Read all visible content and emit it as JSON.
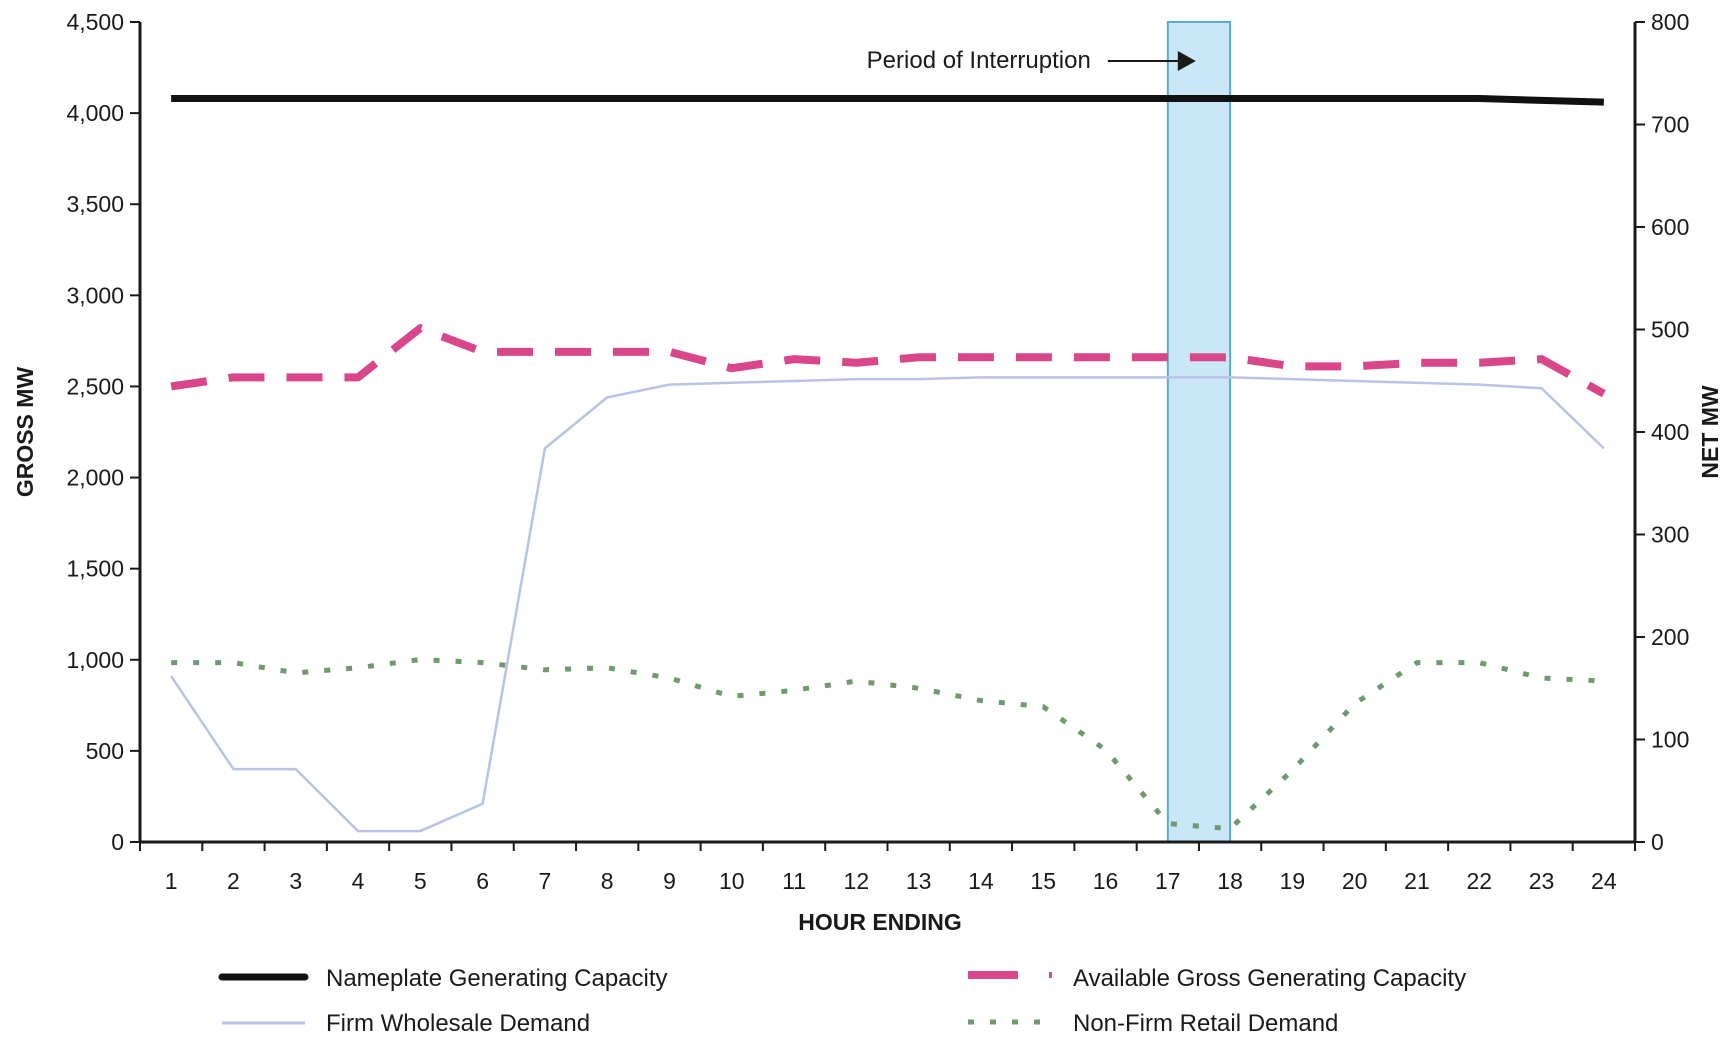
{
  "chart_data": {
    "type": "line",
    "title": "",
    "xlabel": "HOUR ENDING",
    "ylabel": "GROSS MW",
    "y2label": "NET MW",
    "x": [
      1,
      2,
      3,
      4,
      5,
      6,
      7,
      8,
      9,
      10,
      11,
      12,
      13,
      14,
      15,
      16,
      17,
      18,
      19,
      20,
      21,
      22,
      23,
      24
    ],
    "xlim": [
      0.5,
      24.5
    ],
    "ylim": [
      0,
      4500
    ],
    "y2lim": [
      0,
      800
    ],
    "y_ticks": [
      0,
      500,
      1000,
      1500,
      2000,
      2500,
      3000,
      3500,
      4000,
      4500
    ],
    "y_tick_labels": [
      "0",
      "500",
      "1,000",
      "1,500",
      "2,000",
      "2,500",
      "3,000",
      "3,500",
      "4,000",
      "4,500"
    ],
    "y2_ticks": [
      0,
      100,
      200,
      300,
      400,
      500,
      600,
      700,
      800
    ],
    "y2_tick_labels": [
      "0",
      "100",
      "200",
      "300",
      "400",
      "500",
      "600",
      "700",
      "800"
    ],
    "grid": false,
    "legend_position": "bottom",
    "series": [
      {
        "name": "Nameplate Generating Capacity",
        "axis": "left",
        "color": "#111111",
        "style": "solid-thick",
        "values": [
          4080,
          4080,
          4080,
          4080,
          4080,
          4080,
          4080,
          4080,
          4080,
          4080,
          4080,
          4080,
          4080,
          4080,
          4080,
          4080,
          4080,
          4080,
          4080,
          4080,
          4080,
          4080,
          4070,
          4060
        ]
      },
      {
        "name": "Available Gross Generating Capacity",
        "axis": "left",
        "color": "#d9468a",
        "style": "dashed-thick",
        "values": [
          2500,
          2550,
          2550,
          2550,
          2820,
          2690,
          2690,
          2690,
          2690,
          2600,
          2650,
          2630,
          2660,
          2660,
          2660,
          2660,
          2660,
          2660,
          2610,
          2610,
          2630,
          2630,
          2650,
          2460
        ]
      },
      {
        "name": "Firm Wholesale Demand",
        "axis": "left",
        "color": "#b9c3e8",
        "style": "solid-thin",
        "values": [
          910,
          400,
          400,
          60,
          60,
          210,
          2160,
          2440,
          2510,
          2520,
          2530,
          2540,
          2540,
          2550,
          2550,
          2550,
          2550,
          2550,
          2540,
          2530,
          2520,
          2510,
          2490,
          2160
        ]
      },
      {
        "name": "Non-Firm Retail Demand",
        "axis": "right",
        "color": "#6e9a6e",
        "style": "dotted",
        "values": [
          175,
          175,
          165,
          170,
          178,
          175,
          168,
          170,
          160,
          142,
          148,
          157,
          150,
          138,
          132,
          90,
          18,
          13,
          70,
          135,
          175,
          175,
          160,
          157
        ]
      }
    ],
    "annotations": [
      {
        "text": "Period of Interruption",
        "type": "shaded-band",
        "x_start": 17,
        "x_end": 18,
        "color": "#bfe3f5"
      }
    ]
  }
}
